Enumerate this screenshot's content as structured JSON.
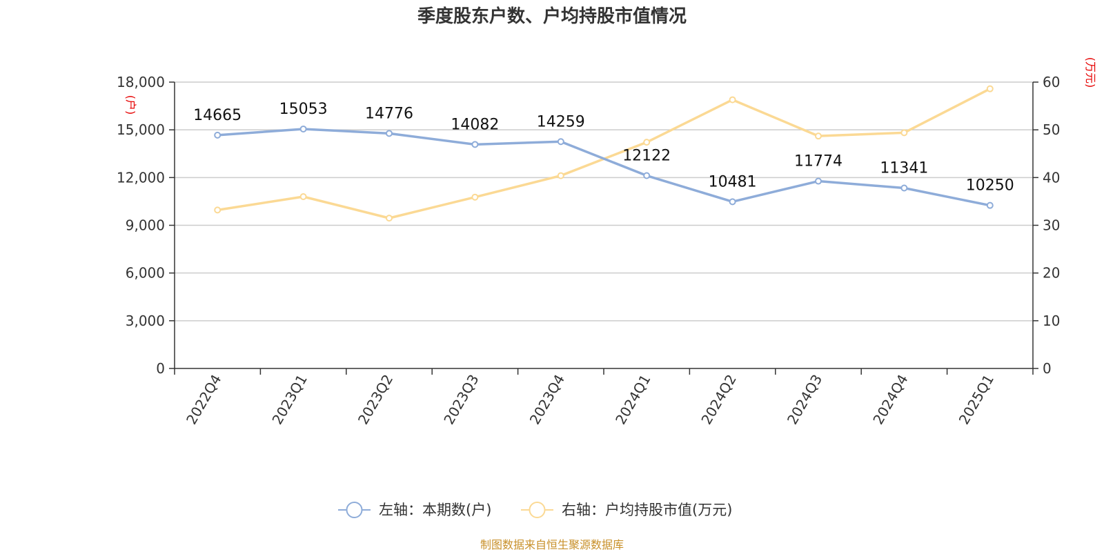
{
  "chart_data": {
    "type": "line",
    "title": "季度股东户数、户均持股市值情况",
    "categories": [
      "2022Q4",
      "2023Q1",
      "2023Q2",
      "2023Q3",
      "2023Q4",
      "2024Q1",
      "2024Q2",
      "2024Q3",
      "2024Q4",
      "2025Q1"
    ],
    "left_axis": {
      "unit": "(户)",
      "ylim": [
        0,
        18000
      ],
      "ticks": [
        0,
        3000,
        6000,
        9000,
        12000,
        15000,
        18000
      ],
      "tick_labels": [
        "0",
        "3,000",
        "6,000",
        "9,000",
        "12,000",
        "15,000",
        "18,000"
      ]
    },
    "right_axis": {
      "unit": "(万元)",
      "ylim": [
        0,
        60
      ],
      "ticks": [
        0,
        10,
        20,
        30,
        40,
        50,
        60
      ],
      "tick_labels": [
        "0",
        "10",
        "20",
        "30",
        "40",
        "50",
        "60"
      ]
    },
    "series": [
      {
        "name": "左轴：本期数(户)",
        "axis": "left",
        "color": "#8eacd9",
        "values": [
          14665,
          15053,
          14776,
          14082,
          14259,
          12122,
          10481,
          11774,
          11341,
          10250
        ],
        "labels": [
          "14665",
          "15053",
          "14776",
          "14082",
          "14259",
          "12122",
          "10481",
          "11774",
          "11341",
          "10250"
        ]
      },
      {
        "name": "右轴：户均持股市值(万元)",
        "axis": "right",
        "color": "#fbd994",
        "values": [
          33.2,
          36.0,
          31.5,
          35.9,
          40.4,
          47.4,
          56.3,
          48.7,
          49.4,
          58.6
        ]
      }
    ],
    "grid": true,
    "legend_position": "bottom-center"
  },
  "source": "制图数据来自恒生聚源数据库"
}
